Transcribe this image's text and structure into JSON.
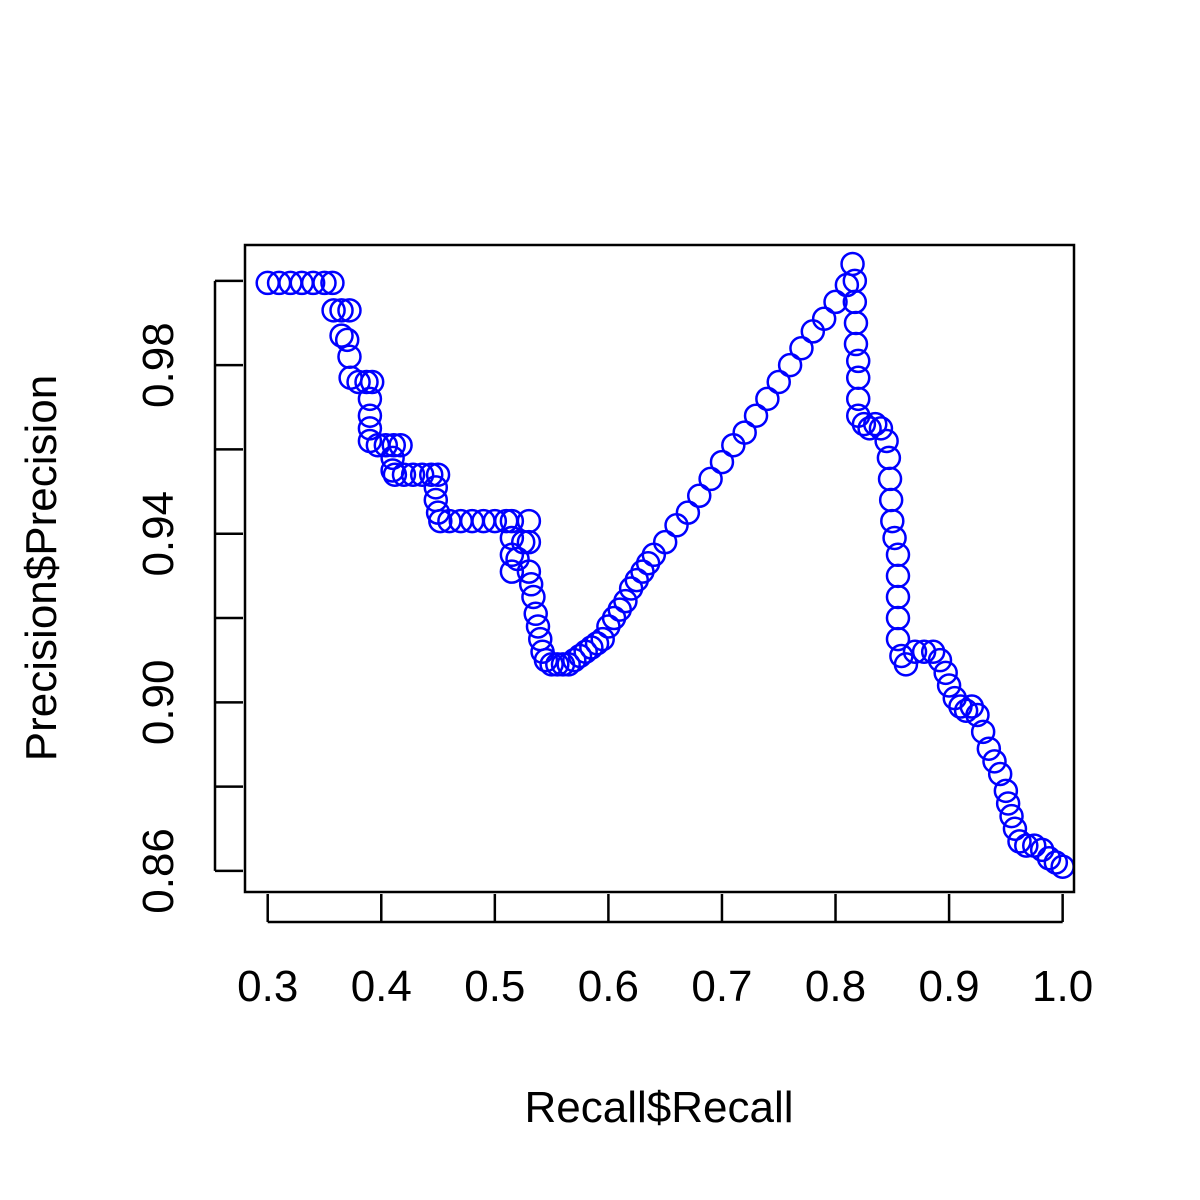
{
  "chart_data": {
    "type": "scatter",
    "title": "",
    "xlabel": "Recall$Recall",
    "ylabel": "Precision$Precision",
    "xlim": [
      0.28,
      1.01
    ],
    "ylim": [
      0.855,
      1.0085
    ],
    "x_ticks": [
      0.3,
      0.4,
      0.5,
      0.6,
      0.7,
      0.8,
      0.9,
      1.0
    ],
    "x_tick_labels": [
      "0.3",
      "0.4",
      "0.5",
      "0.6",
      "0.7",
      "0.8",
      "0.9",
      "1.0"
    ],
    "y_ticks": [
      0.86,
      0.88,
      0.9,
      0.92,
      0.94,
      0.96,
      0.98,
      1.0
    ],
    "y_tick_labels": [
      "0.86",
      "",
      "0.90",
      "",
      "0.94",
      "",
      "0.98",
      ""
    ],
    "grid": false,
    "marker": "open-circle",
    "color": "#0000ff",
    "series": [
      {
        "name": "",
        "points": [
          [
            0.3,
            0.9995
          ],
          [
            0.31,
            0.9995
          ],
          [
            0.32,
            0.9995
          ],
          [
            0.33,
            0.9995
          ],
          [
            0.34,
            0.9995
          ],
          [
            0.35,
            0.9995
          ],
          [
            0.357,
            0.9995
          ],
          [
            0.358,
            0.993
          ],
          [
            0.365,
            0.993
          ],
          [
            0.372,
            0.993
          ],
          [
            0.365,
            0.987
          ],
          [
            0.37,
            0.986
          ],
          [
            0.372,
            0.982
          ],
          [
            0.373,
            0.977
          ],
          [
            0.38,
            0.976
          ],
          [
            0.387,
            0.976
          ],
          [
            0.392,
            0.976
          ],
          [
            0.39,
            0.972
          ],
          [
            0.39,
            0.968
          ],
          [
            0.39,
            0.965
          ],
          [
            0.39,
            0.962
          ],
          [
            0.397,
            0.961
          ],
          [
            0.404,
            0.961
          ],
          [
            0.411,
            0.961
          ],
          [
            0.417,
            0.961
          ],
          [
            0.41,
            0.958
          ],
          [
            0.41,
            0.955
          ],
          [
            0.412,
            0.954
          ],
          [
            0.42,
            0.954
          ],
          [
            0.428,
            0.954
          ],
          [
            0.436,
            0.954
          ],
          [
            0.444,
            0.954
          ],
          [
            0.45,
            0.954
          ],
          [
            0.448,
            0.951
          ],
          [
            0.448,
            0.948
          ],
          [
            0.45,
            0.945
          ],
          [
            0.452,
            0.943
          ],
          [
            0.46,
            0.943
          ],
          [
            0.47,
            0.943
          ],
          [
            0.48,
            0.943
          ],
          [
            0.49,
            0.943
          ],
          [
            0.5,
            0.943
          ],
          [
            0.51,
            0.943
          ],
          [
            0.515,
            0.943
          ],
          [
            0.515,
            0.939
          ],
          [
            0.515,
            0.935
          ],
          [
            0.515,
            0.931
          ],
          [
            0.52,
            0.934
          ],
          [
            0.525,
            0.938
          ],
          [
            0.53,
            0.943
          ],
          [
            0.53,
            0.938
          ],
          [
            0.53,
            0.931
          ],
          [
            0.532,
            0.928
          ],
          [
            0.534,
            0.925
          ],
          [
            0.536,
            0.921
          ],
          [
            0.538,
            0.918
          ],
          [
            0.54,
            0.915
          ],
          [
            0.542,
            0.912
          ],
          [
            0.545,
            0.91
          ],
          [
            0.55,
            0.909
          ],
          [
            0.555,
            0.909
          ],
          [
            0.56,
            0.909
          ],
          [
            0.565,
            0.909
          ],
          [
            0.57,
            0.91
          ],
          [
            0.575,
            0.911
          ],
          [
            0.58,
            0.912
          ],
          [
            0.585,
            0.913
          ],
          [
            0.59,
            0.914
          ],
          [
            0.595,
            0.915
          ],
          [
            0.6,
            0.918
          ],
          [
            0.605,
            0.92
          ],
          [
            0.61,
            0.922
          ],
          [
            0.615,
            0.924
          ],
          [
            0.62,
            0.927
          ],
          [
            0.625,
            0.929
          ],
          [
            0.63,
            0.931
          ],
          [
            0.635,
            0.933
          ],
          [
            0.64,
            0.935
          ],
          [
            0.65,
            0.938
          ],
          [
            0.66,
            0.942
          ],
          [
            0.67,
            0.945
          ],
          [
            0.68,
            0.949
          ],
          [
            0.69,
            0.953
          ],
          [
            0.7,
            0.957
          ],
          [
            0.71,
            0.961
          ],
          [
            0.72,
            0.964
          ],
          [
            0.73,
            0.968
          ],
          [
            0.74,
            0.972
          ],
          [
            0.75,
            0.976
          ],
          [
            0.76,
            0.98
          ],
          [
            0.77,
            0.984
          ],
          [
            0.78,
            0.988
          ],
          [
            0.79,
            0.991
          ],
          [
            0.8,
            0.995
          ],
          [
            0.81,
            0.999
          ],
          [
            0.815,
            1.004
          ],
          [
            0.817,
            1.0
          ],
          [
            0.817,
            0.995
          ],
          [
            0.818,
            0.99
          ],
          [
            0.818,
            0.985
          ],
          [
            0.82,
            0.981
          ],
          [
            0.82,
            0.977
          ],
          [
            0.82,
            0.972
          ],
          [
            0.82,
            0.968
          ],
          [
            0.825,
            0.966
          ],
          [
            0.83,
            0.965
          ],
          [
            0.835,
            0.966
          ],
          [
            0.84,
            0.965
          ],
          [
            0.845,
            0.962
          ],
          [
            0.847,
            0.958
          ],
          [
            0.848,
            0.953
          ],
          [
            0.849,
            0.948
          ],
          [
            0.85,
            0.943
          ],
          [
            0.852,
            0.939
          ],
          [
            0.855,
            0.935
          ],
          [
            0.855,
            0.93
          ],
          [
            0.855,
            0.925
          ],
          [
            0.855,
            0.92
          ],
          [
            0.855,
            0.915
          ],
          [
            0.858,
            0.911
          ],
          [
            0.862,
            0.909
          ],
          [
            0.87,
            0.912
          ],
          [
            0.878,
            0.912
          ],
          [
            0.886,
            0.912
          ],
          [
            0.892,
            0.91
          ],
          [
            0.897,
            0.907
          ],
          [
            0.9,
            0.904
          ],
          [
            0.905,
            0.901
          ],
          [
            0.91,
            0.899
          ],
          [
            0.915,
            0.898
          ],
          [
            0.92,
            0.899
          ],
          [
            0.925,
            0.897
          ],
          [
            0.93,
            0.893
          ],
          [
            0.935,
            0.889
          ],
          [
            0.94,
            0.886
          ],
          [
            0.945,
            0.883
          ],
          [
            0.95,
            0.879
          ],
          [
            0.952,
            0.876
          ],
          [
            0.955,
            0.873
          ],
          [
            0.958,
            0.87
          ],
          [
            0.962,
            0.867
          ],
          [
            0.968,
            0.866
          ],
          [
            0.975,
            0.866
          ],
          [
            0.982,
            0.865
          ],
          [
            0.988,
            0.863
          ],
          [
            0.994,
            0.862
          ],
          [
            1.0,
            0.861
          ]
        ]
      }
    ]
  }
}
